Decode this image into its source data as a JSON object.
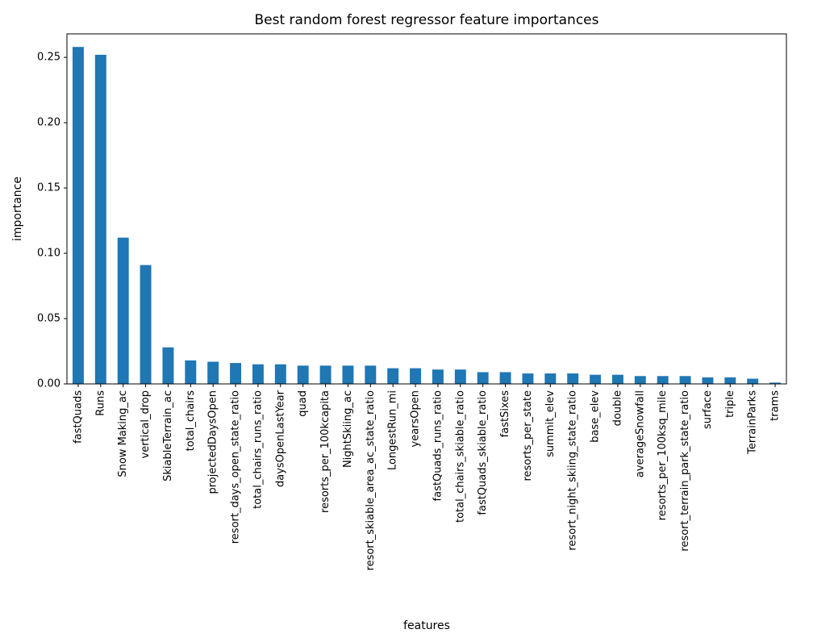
{
  "chart_data": {
    "type": "bar",
    "title": "Best random forest regressor feature importances",
    "xlabel": "features",
    "ylabel": "importance",
    "ylim": [
      0,
      0.268
    ],
    "yticks": [
      "0.00",
      "0.05",
      "0.10",
      "0.15",
      "0.20",
      "0.25"
    ],
    "grid": false,
    "bar_color": "#1f77b4",
    "categories": [
      "fastQuads",
      "Runs",
      "Snow Making_ac",
      "vertical_drop",
      "SkiableTerrain_ac",
      "total_chairs",
      "projectedDaysOpen",
      "resort_days_open_state_ratio",
      "total_chairs_runs_ratio",
      "daysOpenLastYear",
      "quad",
      "resorts_per_100kcapita",
      "NightSkiing_ac",
      "resort_skiable_area_ac_state_ratio",
      "LongestRun_mi",
      "yearsOpen",
      "fastQuads_runs_ratio",
      "total_chairs_skiable_ratio",
      "fastQuads_skiable_ratio",
      "fastSixes",
      "resorts_per_state",
      "summit_elev",
      "resort_night_skiing_state_ratio",
      "base_elev",
      "double",
      "averageSnowfall",
      "resorts_per_100ksq_mile",
      "resort_terrain_park_state_ratio",
      "surface",
      "triple",
      "TerrainParks",
      "trams"
    ],
    "values": [
      0.258,
      0.252,
      0.112,
      0.091,
      0.028,
      0.018,
      0.017,
      0.016,
      0.015,
      0.015,
      0.014,
      0.014,
      0.014,
      0.014,
      0.012,
      0.012,
      0.011,
      0.011,
      0.009,
      0.009,
      0.008,
      0.008,
      0.008,
      0.007,
      0.007,
      0.006,
      0.006,
      0.006,
      0.005,
      0.005,
      0.004,
      0.001
    ]
  }
}
